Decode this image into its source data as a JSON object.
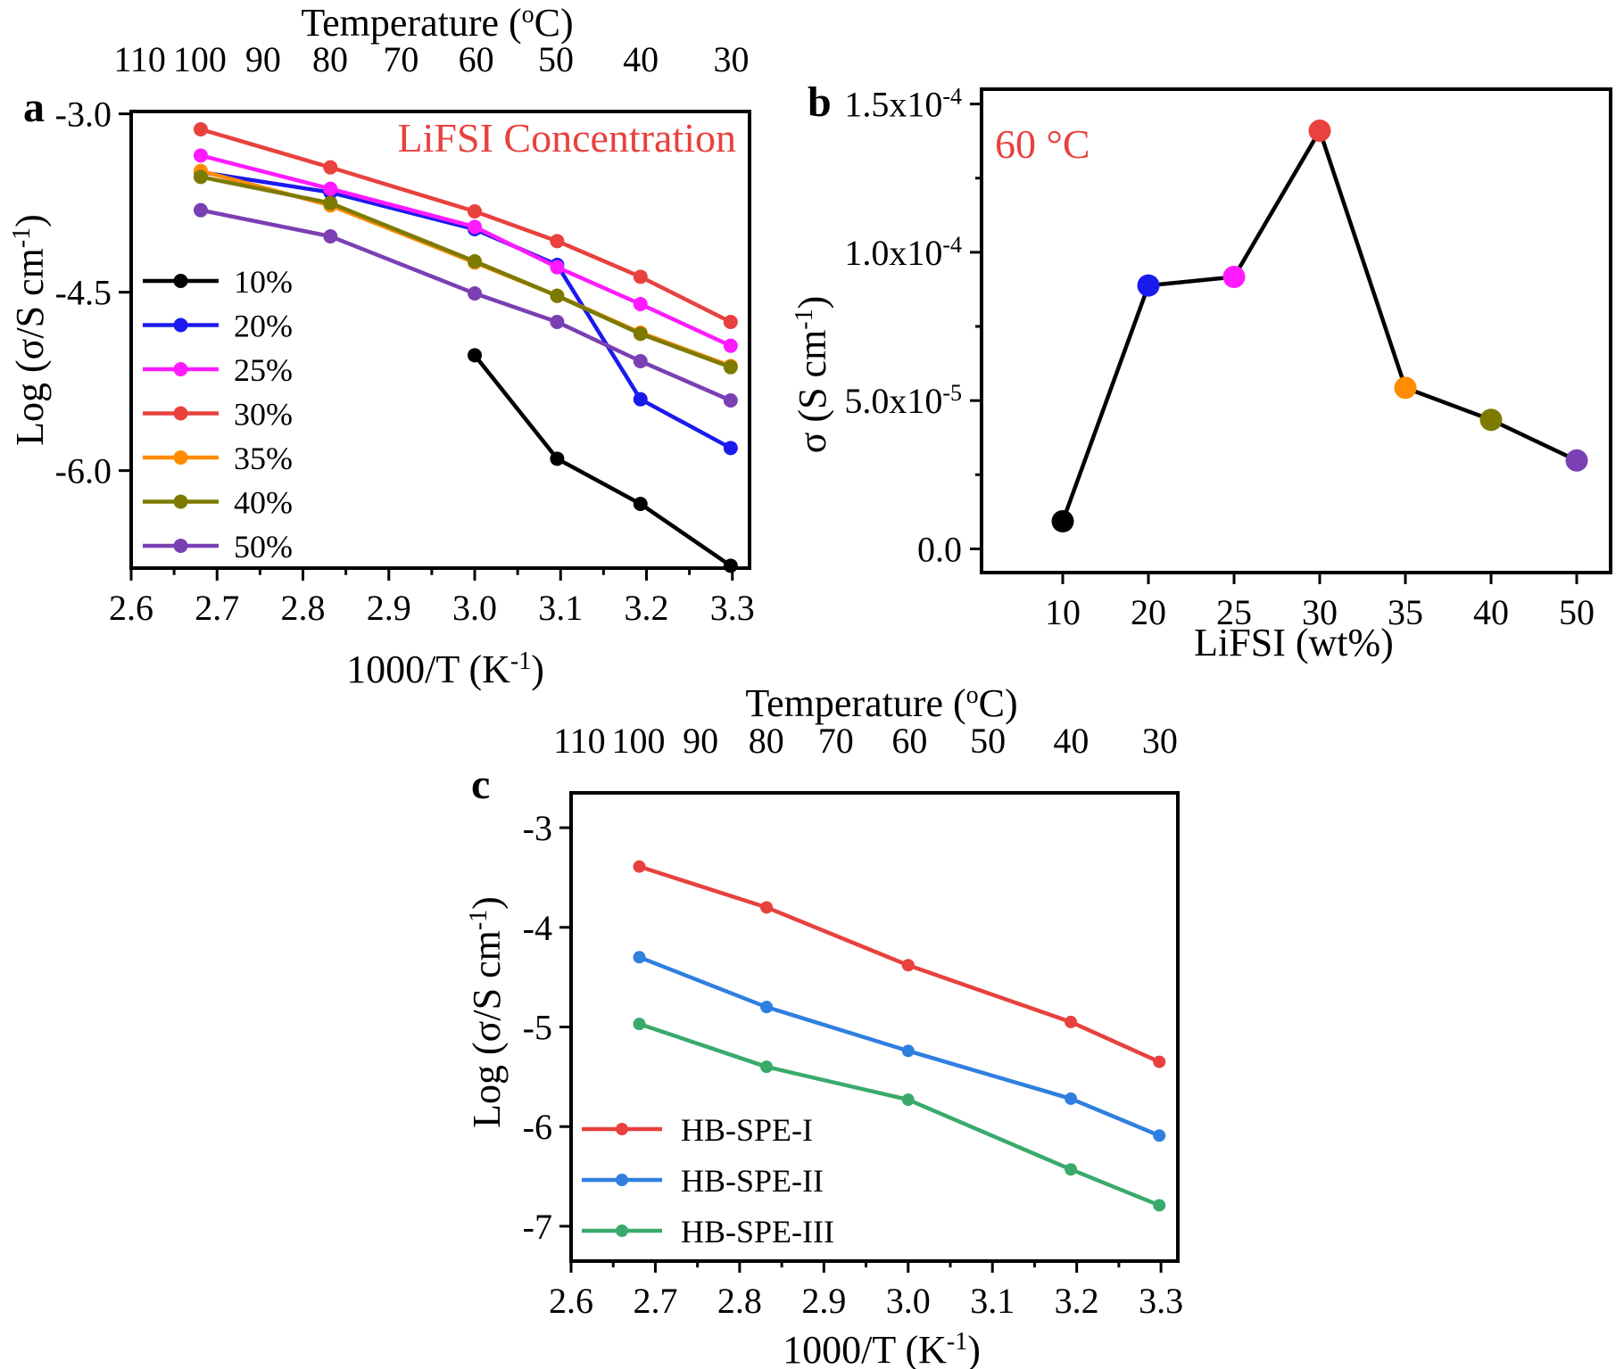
{
  "chart_data": [
    {
      "panel": "a",
      "type": "line",
      "annotation": "LiFSI Concentration",
      "annotation_color": "#e8413e",
      "xlabel": "1000/T (K-1)",
      "ylabel": "Log (σ/S cm-1)",
      "top_xlabel": "Temperature (oC)",
      "xlim": [
        2.6,
        3.32
      ],
      "ylim": [
        -6.82,
        -2.98
      ],
      "xticks": [
        "2.6",
        "2.7",
        "2.8",
        "2.9",
        "3.0",
        "3.1",
        "3.2",
        "3.3"
      ],
      "yticks": [
        "-3.0",
        "-4.5",
        "-6.0"
      ],
      "top_ticks": [
        "110",
        "100",
        "90",
        "80",
        "70",
        "60",
        "50",
        "40",
        "30"
      ],
      "legend_position": "left",
      "series": [
        {
          "name": "10%",
          "color": "#000000",
          "x": [
            3.0,
            3.096,
            3.193,
            3.298
          ],
          "y": [
            -5.03,
            -5.9,
            -6.28,
            -6.8
          ]
        },
        {
          "name": "20%",
          "color": "#1a1aee",
          "x": [
            2.681,
            2.832,
            3.0,
            3.096,
            3.193,
            3.298
          ],
          "y": [
            -3.49,
            -3.66,
            -3.97,
            -4.27,
            -5.4,
            -5.81
          ]
        },
        {
          "name": "25%",
          "color": "#ff1aff",
          "x": [
            2.681,
            2.832,
            3.0,
            3.096,
            3.193,
            3.298
          ],
          "y": [
            -3.35,
            -3.63,
            -3.95,
            -4.29,
            -4.6,
            -4.95
          ]
        },
        {
          "name": "30%",
          "color": "#e8413e",
          "x": [
            2.681,
            2.832,
            3.0,
            3.096,
            3.193,
            3.298
          ],
          "y": [
            -3.13,
            -3.45,
            -3.82,
            -4.07,
            -4.37,
            -4.75
          ]
        },
        {
          "name": "35%",
          "color": "#ff8c00",
          "x": [
            2.681,
            2.832,
            3.0,
            3.096,
            3.193,
            3.298
          ],
          "y": [
            -3.48,
            -3.77,
            -4.25,
            -4.53,
            -4.84,
            -5.12
          ]
        },
        {
          "name": "40%",
          "color": "#7d7a00",
          "x": [
            2.681,
            2.832,
            3.0,
            3.096,
            3.193,
            3.298
          ],
          "y": [
            -3.53,
            -3.75,
            -4.24,
            -4.53,
            -4.85,
            -5.13
          ]
        },
        {
          "name": "50%",
          "color": "#7b3fb4",
          "x": [
            2.681,
            2.832,
            3.0,
            3.096,
            3.193,
            3.298
          ],
          "y": [
            -3.81,
            -4.03,
            -4.51,
            -4.75,
            -5.08,
            -5.41
          ]
        }
      ]
    },
    {
      "panel": "b",
      "type": "line",
      "annotation": "60 °C",
      "annotation_color": "#e8413e",
      "xlabel": "LiFSI (wt%)",
      "ylabel": "σ (S cm-1)",
      "categories": [
        "10",
        "20",
        "25",
        "30",
        "35",
        "40",
        "50"
      ],
      "ylim": [
        -8e-06,
        0.000155
      ],
      "yticks": [
        "0.0",
        "5.0x10-5",
        "1.0x10-4",
        "1.5x10-4"
      ],
      "values": [
        9.3e-06,
        8.88e-05,
        9.17e-05,
        0.000141,
        5.43e-05,
        4.35e-05,
        2.98e-05
      ],
      "point_colors": [
        "#000000",
        "#1a1aee",
        "#ff1aff",
        "#e8413e",
        "#ff8c00",
        "#7d7a00",
        "#7b3fb4"
      ]
    },
    {
      "panel": "c",
      "type": "line",
      "xlabel": "1000/T (K-1)",
      "ylabel": "Log (σ/S cm-1)",
      "top_xlabel": "Temperature (oC)",
      "xlim": [
        2.6,
        3.32
      ],
      "ylim": [
        -7.35,
        -2.65
      ],
      "xticks": [
        "2.6",
        "2.7",
        "2.8",
        "2.9",
        "3.0",
        "3.1",
        "3.2",
        "3.3"
      ],
      "yticks": [
        "-3",
        "-4",
        "-5",
        "-6",
        "-7"
      ],
      "top_ticks": [
        "110",
        "100",
        "90",
        "80",
        "70",
        "60",
        "50",
        "40",
        "30"
      ],
      "legend_position": "bottom-left",
      "series": [
        {
          "name": "HB-SPE-I",
          "color": "#e8413e",
          "x": [
            2.681,
            2.832,
            3.0,
            3.193,
            3.298
          ],
          "y": [
            -3.39,
            -3.8,
            -4.38,
            -4.95,
            -5.35
          ]
        },
        {
          "name": "HB-SPE-II",
          "color": "#2f7fe0",
          "x": [
            2.681,
            2.832,
            3.0,
            3.193,
            3.298
          ],
          "y": [
            -4.3,
            -4.8,
            -5.24,
            -5.72,
            -6.09
          ]
        },
        {
          "name": "HB-SPE-III",
          "color": "#3aaa6c",
          "x": [
            2.681,
            2.832,
            3.0,
            3.193,
            3.298
          ],
          "y": [
            -4.97,
            -5.4,
            -5.73,
            -6.43,
            -6.79
          ]
        }
      ]
    }
  ]
}
